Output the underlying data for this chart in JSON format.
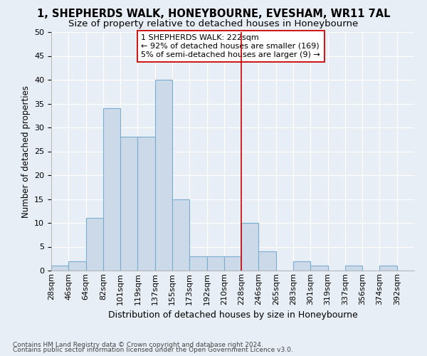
{
  "title1": "1, SHEPHERDS WALK, HONEYBOURNE, EVESHAM, WR11 7AL",
  "title2": "Size of property relative to detached houses in Honeybourne",
  "xlabel": "Distribution of detached houses by size in Honeybourne",
  "ylabel": "Number of detached properties",
  "footnote1": "Contains HM Land Registry data © Crown copyright and database right 2024.",
  "footnote2": "Contains public sector information licensed under the Open Government Licence v3.0.",
  "bin_labels": [
    "28sqm",
    "46sqm",
    "64sqm",
    "82sqm",
    "101sqm",
    "119sqm",
    "137sqm",
    "155sqm",
    "173sqm",
    "192sqm",
    "210sqm",
    "228sqm",
    "246sqm",
    "265sqm",
    "283sqm",
    "301sqm",
    "319sqm",
    "337sqm",
    "356sqm",
    "374sqm",
    "392sqm"
  ],
  "bar_values": [
    1,
    2,
    11,
    34,
    28,
    28,
    40,
    15,
    3,
    3,
    3,
    10,
    4,
    0,
    2,
    1,
    0,
    1,
    0,
    1,
    0
  ],
  "bar_color": "#ccd9e8",
  "bar_edge_color": "#7aaed0",
  "annotation_text": "1 SHEPHERDS WALK: 222sqm\n← 92% of detached houses are smaller (169)\n5% of semi-detached houses are larger (9) →",
  "annotation_box_color": "#ffffff",
  "annotation_box_edge": "#cc0000",
  "vline_color": "#cc0000",
  "vline_bar_index": 11,
  "ylim": [
    0,
    50
  ],
  "yticks": [
    0,
    5,
    10,
    15,
    20,
    25,
    30,
    35,
    40,
    45,
    50
  ],
  "background_color": "#e8eef5",
  "grid_color": "#ffffff",
  "title_fontsize": 10.5,
  "subtitle_fontsize": 9.5,
  "axis_label_fontsize": 9,
  "ylabel_fontsize": 8.5,
  "tick_fontsize": 8,
  "footnote_fontsize": 6.5,
  "annotation_fontsize": 8
}
